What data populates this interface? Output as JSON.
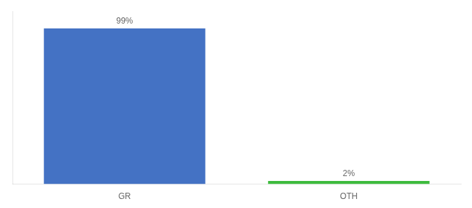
{
  "chart_data": {
    "type": "bar",
    "categories": [
      "GR",
      "OTH"
    ],
    "values": [
      99,
      2
    ],
    "value_labels": [
      "99%",
      "2%"
    ],
    "colors": [
      "#4472c4",
      "#3dbb3d"
    ],
    "ylim": [
      0,
      110
    ],
    "data_labels": true,
    "tick_labels": "x",
    "grid": false
  }
}
